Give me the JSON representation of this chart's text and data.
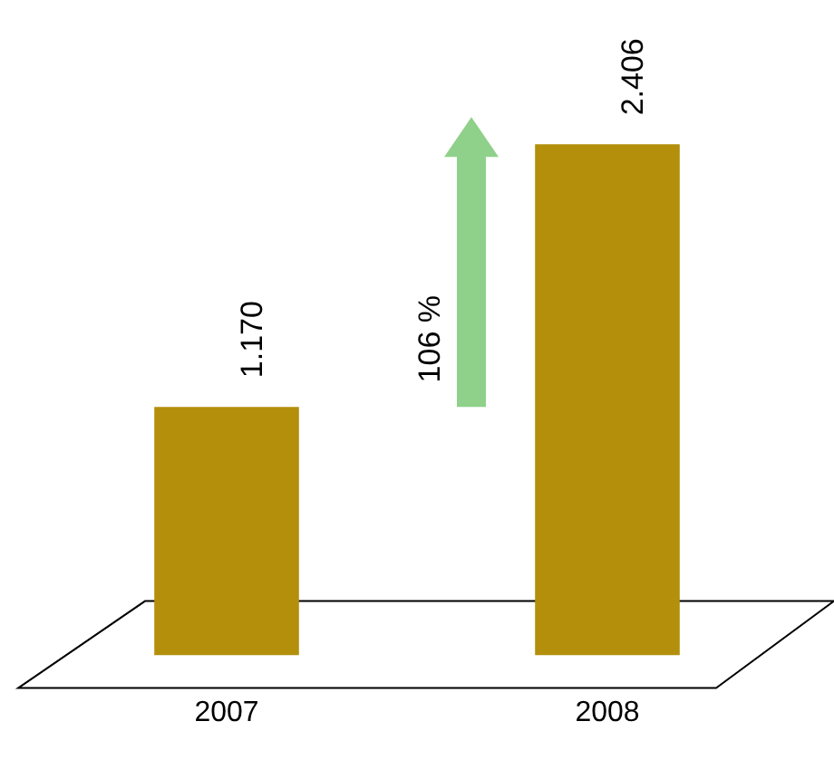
{
  "chart_data": {
    "type": "bar",
    "categories": [
      "2007",
      "2008"
    ],
    "values": [
      1170,
      2406
    ],
    "value_labels": [
      "1.170",
      "2.406"
    ],
    "color": "#b38f0b",
    "grid": false,
    "legend": false,
    "annotations": [
      "106 %"
    ]
  }
}
